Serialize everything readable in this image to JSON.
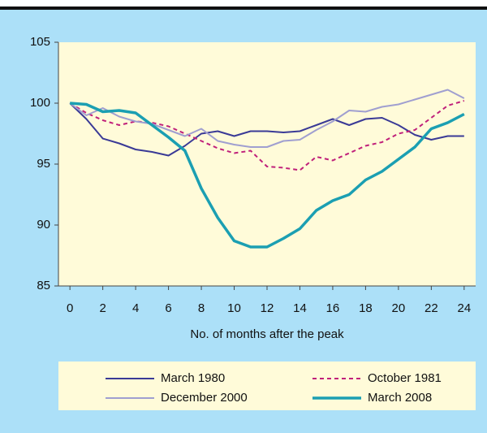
{
  "chart_data": {
    "type": "line",
    "x_label": "No. of months after the peak",
    "x": [
      0,
      1,
      2,
      3,
      4,
      5,
      6,
      7,
      8,
      9,
      10,
      11,
      12,
      13,
      14,
      15,
      16,
      17,
      18,
      19,
      20,
      21,
      22,
      23,
      24
    ],
    "xlim": [
      -0.7,
      24.7
    ],
    "xticks": [
      0,
      2,
      4,
      6,
      8,
      10,
      12,
      14,
      16,
      18,
      20,
      22,
      24
    ],
    "ylim": [
      85,
      105
    ],
    "yticks": [
      85,
      90,
      95,
      100,
      105
    ],
    "series": [
      {
        "name": "March 1980",
        "color": "#3a3a96",
        "dash": false,
        "width": 2,
        "values": [
          100,
          98.7,
          97.1,
          96.7,
          96.2,
          96.0,
          95.7,
          96.5,
          97.5,
          97.7,
          97.3,
          97.7,
          97.7,
          97.6,
          97.7,
          98.2,
          98.7,
          98.2,
          98.7,
          98.8,
          98.2,
          97.4,
          97.0,
          97.3,
          97.3
        ]
      },
      {
        "name": "October 1981",
        "color": "#c0207a",
        "dash": true,
        "width": 2,
        "values": [
          100,
          99.2,
          98.6,
          98.2,
          98.5,
          98.4,
          98.1,
          97.5,
          96.9,
          96.3,
          95.9,
          96.1,
          94.8,
          94.7,
          94.5,
          95.6,
          95.3,
          95.9,
          96.5,
          96.8,
          97.5,
          97.8,
          98.8,
          99.8,
          100.2
        ]
      },
      {
        "name": "December 2000",
        "color": "#a09fd0",
        "dash": false,
        "width": 2,
        "values": [
          100,
          99.0,
          99.6,
          98.9,
          98.5,
          98.3,
          97.8,
          97.3,
          97.9,
          96.9,
          96.6,
          96.4,
          96.4,
          96.9,
          97.0,
          97.8,
          98.5,
          99.4,
          99.3,
          99.7,
          99.9,
          100.3,
          100.7,
          101.1,
          100.4
        ]
      },
      {
        "name": "March 2008",
        "color": "#1b9fb2",
        "dash": false,
        "width": 3.5,
        "values": [
          100,
          99.9,
          99.3,
          99.4,
          99.2,
          98.2,
          97.2,
          96.1,
          93.0,
          90.6,
          88.7,
          88.2,
          88.2,
          88.9,
          89.7,
          91.2,
          92.0,
          92.5,
          93.7,
          94.4,
          95.4,
          96.4,
          97.9,
          98.4,
          99.1
        ]
      }
    ]
  }
}
